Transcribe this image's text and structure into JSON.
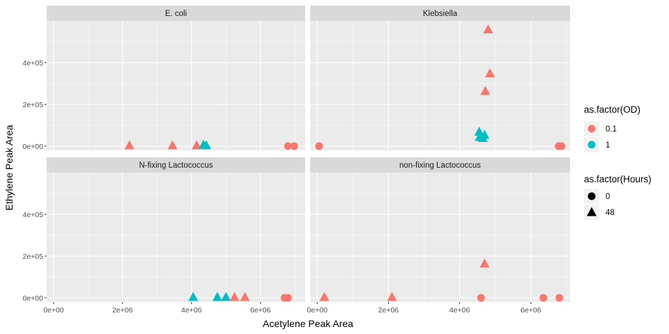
{
  "chart_data": {
    "type": "scatter",
    "xlabel": "Acetylene Peak Area",
    "ylabel": "Ethylene Peak Area",
    "x_ticks": [
      {
        "value": 0,
        "label": "0e+00"
      },
      {
        "value": 2000000,
        "label": "2e+06"
      },
      {
        "value": 4000000,
        "label": "4e+06"
      },
      {
        "value": 6000000,
        "label": "6e+06"
      }
    ],
    "y_ticks": [
      {
        "value": 0,
        "label": "0e+00"
      },
      {
        "value": 200000,
        "label": "2e+05"
      },
      {
        "value": 400000,
        "label": "4e+05"
      }
    ],
    "xlim": [
      -200000,
      7300000
    ],
    "ylim": [
      -20000,
      600000
    ],
    "panel_columns_free_x": true,
    "panels": [
      {
        "strip": "E. coli",
        "xlim": [
          -200000,
          7300000
        ],
        "points": [
          {
            "x": 2200000,
            "y": 5000,
            "od": "0.1",
            "hours": "48"
          },
          {
            "x": 3450000,
            "y": 5000,
            "od": "0.1",
            "hours": "48"
          },
          {
            "x": 4150000,
            "y": 5000,
            "od": "0.1",
            "hours": "48"
          },
          {
            "x": 4350000,
            "y": 8000,
            "od": "1",
            "hours": "48"
          },
          {
            "x": 4430000,
            "y": 5000,
            "od": "1",
            "hours": "48"
          },
          {
            "x": 6800000,
            "y": 0,
            "od": "0.1",
            "hours": "0"
          },
          {
            "x": 6980000,
            "y": 0,
            "od": "0.1",
            "hours": "0"
          }
        ]
      },
      {
        "strip": "Klebsiella",
        "xlim": [
          -200000,
          7100000
        ],
        "points": [
          {
            "x": 50000,
            "y": 0,
            "od": "0.1",
            "hours": "0"
          },
          {
            "x": 4800000,
            "y": 560000,
            "od": "0.1",
            "hours": "48"
          },
          {
            "x": 4850000,
            "y": 350000,
            "od": "0.1",
            "hours": "48"
          },
          {
            "x": 4720000,
            "y": 265000,
            "od": "0.1",
            "hours": "48"
          },
          {
            "x": 4550000,
            "y": 70000,
            "od": "1",
            "hours": "48"
          },
          {
            "x": 4700000,
            "y": 55000,
            "od": "1",
            "hours": "48"
          },
          {
            "x": 4560000,
            "y": 45000,
            "od": "1",
            "hours": "48"
          },
          {
            "x": 4650000,
            "y": 40000,
            "od": "1",
            "hours": "48"
          },
          {
            "x": 6780000,
            "y": 0,
            "od": "0.1",
            "hours": "0"
          },
          {
            "x": 6860000,
            "y": 0,
            "od": "0.1",
            "hours": "0"
          }
        ]
      },
      {
        "strip": "N-fixing Lactococcus",
        "xlim": [
          -200000,
          7300000
        ],
        "points": [
          {
            "x": 4050000,
            "y": 5000,
            "od": "1",
            "hours": "48"
          },
          {
            "x": 4750000,
            "y": 5000,
            "od": "1",
            "hours": "48"
          },
          {
            "x": 5000000,
            "y": 5000,
            "od": "1",
            "hours": "48"
          },
          {
            "x": 5250000,
            "y": 5000,
            "od": "0.1",
            "hours": "48"
          },
          {
            "x": 5550000,
            "y": 5000,
            "od": "0.1",
            "hours": "48"
          },
          {
            "x": 6700000,
            "y": 0,
            "od": "0.1",
            "hours": "0"
          },
          {
            "x": 6800000,
            "y": 0,
            "od": "0.1",
            "hours": "0"
          }
        ]
      },
      {
        "strip": "non-fixing Lactococcus",
        "xlim": [
          -200000,
          7100000
        ],
        "points": [
          {
            "x": 200000,
            "y": 5000,
            "od": "0.1",
            "hours": "48"
          },
          {
            "x": 2100000,
            "y": 5000,
            "od": "0.1",
            "hours": "48"
          },
          {
            "x": 4700000,
            "y": 165000,
            "od": "0.1",
            "hours": "48"
          },
          {
            "x": 4600000,
            "y": 0,
            "od": "0.1",
            "hours": "0"
          },
          {
            "x": 6350000,
            "y": 0,
            "od": "0.1",
            "hours": "0"
          },
          {
            "x": 6800000,
            "y": 0,
            "od": "0.1",
            "hours": "0"
          }
        ]
      }
    ],
    "legends": [
      {
        "title": "as.factor(OD)",
        "placement": "right",
        "entries": [
          {
            "label": "0.1",
            "color": "#F8766D"
          },
          {
            "label": "1",
            "color": "#00BFC4"
          }
        ]
      },
      {
        "title": "as.factor(Hours)",
        "placement": "right",
        "entries": [
          {
            "label": "0",
            "shape": "circle"
          },
          {
            "label": "48",
            "shape": "triangle"
          }
        ]
      }
    ],
    "colors": {
      "0.1": "#F8766D",
      "1": "#00BFC4"
    },
    "grid": true
  }
}
